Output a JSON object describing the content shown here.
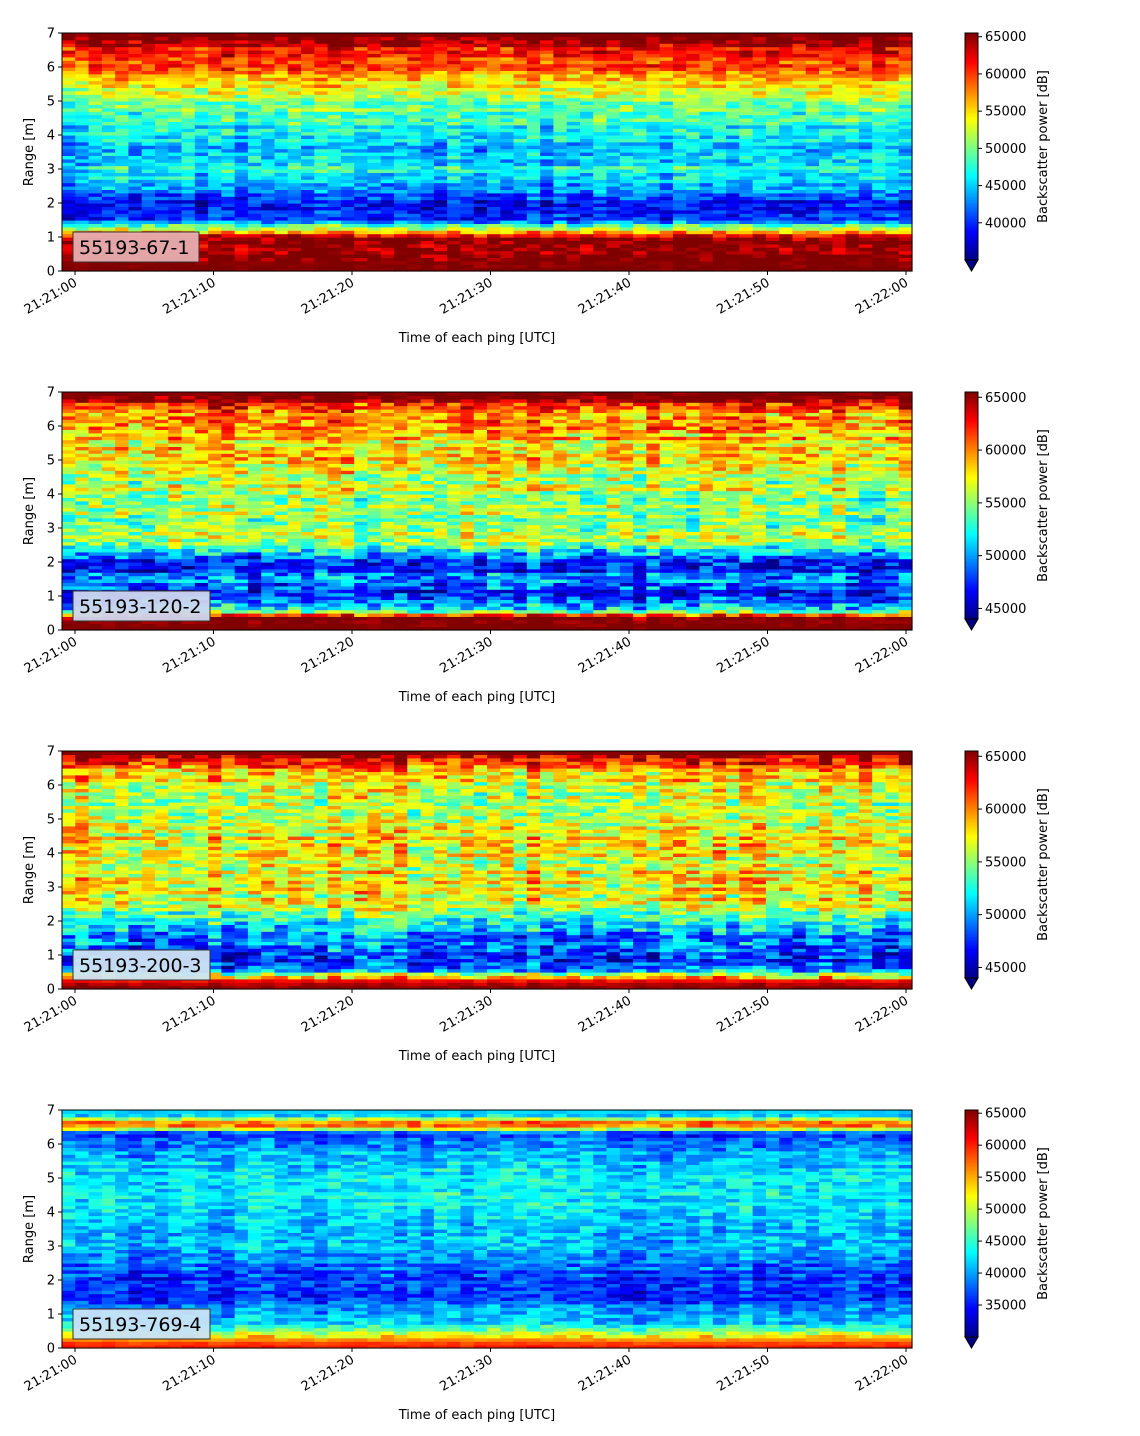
{
  "chart_data": [
    {
      "type": "heatmap",
      "station_label": "55193-67-1",
      "xlabel": "Time of each ping [UTC]",
      "ylabel": "Range [m]",
      "colorbar_label": "Backscatter power [dB]",
      "xlim": [
        "21:21:00",
        "21:22:00"
      ],
      "x_ticks": [
        "21:21:00",
        "21:21:10",
        "21:21:20",
        "21:21:30",
        "21:21:40",
        "21:21:50",
        "21:22:00"
      ],
      "ylim": [
        0,
        7
      ],
      "y_ticks": [
        "0",
        "1",
        "2",
        "3",
        "4",
        "5",
        "6",
        "7"
      ],
      "colorbar_range": [
        35000,
        65500
      ],
      "colorbar_ticks": [
        40000,
        45000,
        50000,
        55000,
        60000,
        65000
      ],
      "colormap": "jet",
      "colorbar_extend": "min",
      "label_box_color": "#e7aeb0",
      "range_profile": [
        {
          "range": 0.15,
          "value": 65500
        },
        {
          "range": 0.6,
          "value": 65500
        },
        {
          "range": 1.0,
          "value": 64000
        },
        {
          "range": 1.2,
          "value": 55000
        },
        {
          "range": 1.5,
          "value": 40000
        },
        {
          "range": 2.0,
          "value": 38000
        },
        {
          "range": 2.5,
          "value": 44000
        },
        {
          "range": 3.0,
          "value": 47000
        },
        {
          "range": 3.5,
          "value": 44000
        },
        {
          "range": 4.0,
          "value": 46000
        },
        {
          "range": 4.5,
          "value": 48000
        },
        {
          "range": 5.0,
          "value": 50000
        },
        {
          "range": 5.5,
          "value": 55000
        },
        {
          "range": 6.0,
          "value": 59000
        },
        {
          "range": 6.5,
          "value": 61000
        },
        {
          "range": 6.85,
          "value": 65500
        }
      ]
    },
    {
      "type": "heatmap",
      "station_label": "55193-120-2",
      "xlabel": "Time of each ping [UTC]",
      "ylabel": "Range [m]",
      "colorbar_label": "Backscatter power [dB]",
      "xlim": [
        "21:21:00",
        "21:22:00"
      ],
      "x_ticks": [
        "21:21:00",
        "21:21:10",
        "21:21:20",
        "21:21:30",
        "21:21:40",
        "21:21:50",
        "21:22:00"
      ],
      "ylim": [
        0,
        7
      ],
      "y_ticks": [
        "0",
        "1",
        "2",
        "3",
        "4",
        "5",
        "6",
        "7"
      ],
      "colorbar_range": [
        44000,
        65500
      ],
      "colorbar_ticks": [
        45000,
        50000,
        55000,
        60000,
        65000
      ],
      "colormap": "jet",
      "colorbar_extend": "min",
      "label_box_color": "#cfd6ee",
      "range_profile": [
        {
          "range": 0.1,
          "value": 65500
        },
        {
          "range": 0.35,
          "value": 65500
        },
        {
          "range": 0.6,
          "value": 52000
        },
        {
          "range": 1.0,
          "value": 47000
        },
        {
          "range": 1.5,
          "value": 49000
        },
        {
          "range": 2.0,
          "value": 46500
        },
        {
          "range": 2.3,
          "value": 52000
        },
        {
          "range": 2.6,
          "value": 56000
        },
        {
          "range": 3.0,
          "value": 54500
        },
        {
          "range": 3.5,
          "value": 55000
        },
        {
          "range": 4.0,
          "value": 55500
        },
        {
          "range": 4.5,
          "value": 56000
        },
        {
          "range": 5.0,
          "value": 57000
        },
        {
          "range": 5.5,
          "value": 58000
        },
        {
          "range": 6.0,
          "value": 59500
        },
        {
          "range": 6.5,
          "value": 60500
        },
        {
          "range": 6.85,
          "value": 65500
        }
      ]
    },
    {
      "type": "heatmap",
      "station_label": "55193-200-3",
      "xlabel": "Time of each ping [UTC]",
      "ylabel": "Range [m]",
      "colorbar_label": "Backscatter power [dB]",
      "xlim": [
        "21:21:00",
        "21:22:00"
      ],
      "x_ticks": [
        "21:21:00",
        "21:21:10",
        "21:21:20",
        "21:21:30",
        "21:21:40",
        "21:21:50",
        "21:22:00"
      ],
      "ylim": [
        0,
        7
      ],
      "y_ticks": [
        "0",
        "1",
        "2",
        "3",
        "4",
        "5",
        "6",
        "7"
      ],
      "colorbar_range": [
        44000,
        65500
      ],
      "colorbar_ticks": [
        45000,
        50000,
        55000,
        60000,
        65000
      ],
      "colormap": "jet",
      "colorbar_extend": "min",
      "label_box_color": "#cfe3f2",
      "range_profile": [
        {
          "range": 0.1,
          "value": 65500
        },
        {
          "range": 0.3,
          "value": 62000
        },
        {
          "range": 0.6,
          "value": 48000
        },
        {
          "range": 1.0,
          "value": 47500
        },
        {
          "range": 1.5,
          "value": 50000
        },
        {
          "range": 2.0,
          "value": 53000
        },
        {
          "range": 2.5,
          "value": 57000
        },
        {
          "range": 3.0,
          "value": 57500
        },
        {
          "range": 3.5,
          "value": 57000
        },
        {
          "range": 4.0,
          "value": 57500
        },
        {
          "range": 4.5,
          "value": 57500
        },
        {
          "range": 5.0,
          "value": 57000
        },
        {
          "range": 5.5,
          "value": 56500
        },
        {
          "range": 6.0,
          "value": 57000
        },
        {
          "range": 6.5,
          "value": 60000
        },
        {
          "range": 6.85,
          "value": 65500
        }
      ]
    },
    {
      "type": "heatmap",
      "station_label": "55193-769-4",
      "xlabel": "Time of each ping [UTC]",
      "ylabel": "Range [m]",
      "colorbar_label": "Backscatter power [dB]",
      "xlim": [
        "21:21:00",
        "21:22:00"
      ],
      "x_ticks": [
        "21:21:00",
        "21:21:10",
        "21:21:20",
        "21:21:30",
        "21:21:40",
        "21:21:50",
        "21:22:00"
      ],
      "ylim": [
        0,
        7
      ],
      "y_ticks": [
        "0",
        "1",
        "2",
        "3",
        "4",
        "5",
        "6",
        "7"
      ],
      "colorbar_range": [
        30000,
        65500
      ],
      "colorbar_ticks": [
        35000,
        40000,
        45000,
        50000,
        55000,
        60000,
        65000
      ],
      "colormap": "jet",
      "colorbar_extend": "min",
      "label_box_color": "#c9e2f5",
      "range_profile": [
        {
          "range": 0.1,
          "value": 60000
        },
        {
          "range": 0.3,
          "value": 55000
        },
        {
          "range": 0.6,
          "value": 44000
        },
        {
          "range": 1.0,
          "value": 40000
        },
        {
          "range": 1.5,
          "value": 36000
        },
        {
          "range": 2.0,
          "value": 35500
        },
        {
          "range": 2.5,
          "value": 38500
        },
        {
          "range": 3.0,
          "value": 40500
        },
        {
          "range": 3.5,
          "value": 42000
        },
        {
          "range": 4.0,
          "value": 43000
        },
        {
          "range": 4.5,
          "value": 43000
        },
        {
          "range": 5.0,
          "value": 42500
        },
        {
          "range": 5.5,
          "value": 41500
        },
        {
          "range": 6.0,
          "value": 39000
        },
        {
          "range": 6.3,
          "value": 35000
        },
        {
          "range": 6.6,
          "value": 62000
        },
        {
          "range": 6.85,
          "value": 42000
        }
      ]
    }
  ]
}
